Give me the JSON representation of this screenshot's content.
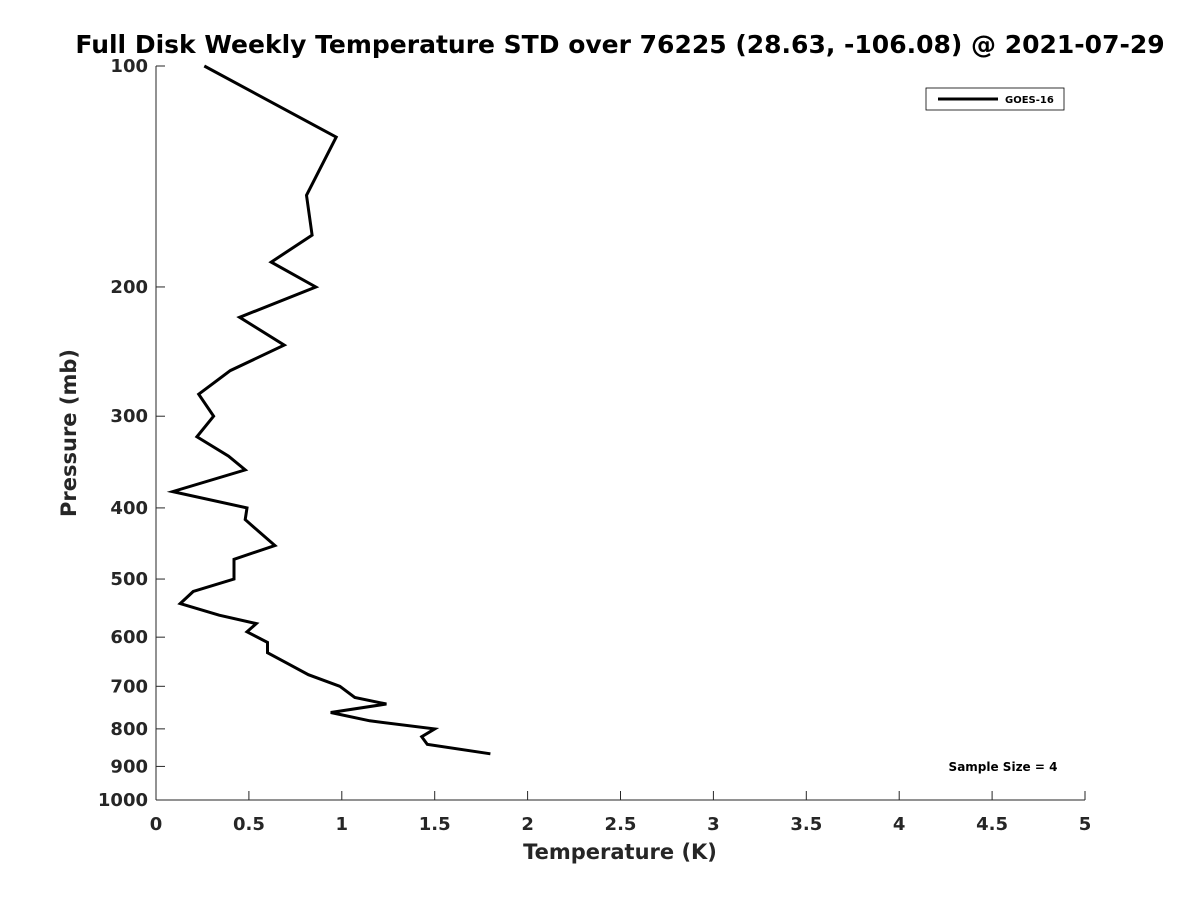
{
  "chart_data": {
    "type": "line",
    "title": "Full Disk Weekly Temperature STD over 76225 (28.63, -106.08) @ 2021-07-29",
    "xlabel": "Temperature (K)",
    "ylabel": "Pressure (mb)",
    "xlim": [
      0,
      5
    ],
    "ylim": [
      100,
      1000
    ],
    "y_scale": "log",
    "y_reversed": true,
    "grid": false,
    "legend_position": "top-right",
    "x_ticks": [
      0,
      0.5,
      1,
      1.5,
      2,
      2.5,
      3,
      3.5,
      4,
      4.5,
      5
    ],
    "x_tick_labels": [
      "0",
      "0.5",
      "1",
      "1.5",
      "2",
      "2.5",
      "3",
      "3.5",
      "4",
      "4.5",
      "5"
    ],
    "y_ticks": [
      100,
      200,
      300,
      400,
      500,
      600,
      700,
      800,
      900,
      1000
    ],
    "y_tick_labels": [
      "100",
      "200",
      "300",
      "400",
      "500",
      "600",
      "700",
      "800",
      "900",
      "1000"
    ],
    "series": [
      {
        "name": "GOES-16",
        "color": "#000000",
        "points": [
          {
            "x": 0.26,
            "p": 100
          },
          {
            "x": 0.97,
            "p": 125
          },
          {
            "x": 0.81,
            "p": 150
          },
          {
            "x": 0.84,
            "p": 170
          },
          {
            "x": 0.62,
            "p": 185
          },
          {
            "x": 0.86,
            "p": 200
          },
          {
            "x": 0.45,
            "p": 220
          },
          {
            "x": 0.69,
            "p": 240
          },
          {
            "x": 0.4,
            "p": 260
          },
          {
            "x": 0.23,
            "p": 280
          },
          {
            "x": 0.31,
            "p": 300
          },
          {
            "x": 0.22,
            "p": 320
          },
          {
            "x": 0.39,
            "p": 340
          },
          {
            "x": 0.48,
            "p": 355
          },
          {
            "x": 0.09,
            "p": 380
          },
          {
            "x": 0.49,
            "p": 400
          },
          {
            "x": 0.48,
            "p": 415
          },
          {
            "x": 0.55,
            "p": 430
          },
          {
            "x": 0.64,
            "p": 450
          },
          {
            "x": 0.42,
            "p": 470
          },
          {
            "x": 0.42,
            "p": 500
          },
          {
            "x": 0.2,
            "p": 520
          },
          {
            "x": 0.13,
            "p": 540
          },
          {
            "x": 0.34,
            "p": 560
          },
          {
            "x": 0.54,
            "p": 575
          },
          {
            "x": 0.49,
            "p": 590
          },
          {
            "x": 0.6,
            "p": 610
          },
          {
            "x": 0.6,
            "p": 630
          },
          {
            "x": 0.7,
            "p": 650
          },
          {
            "x": 0.82,
            "p": 675
          },
          {
            "x": 0.99,
            "p": 700
          },
          {
            "x": 1.07,
            "p": 725
          },
          {
            "x": 1.24,
            "p": 740
          },
          {
            "x": 0.94,
            "p": 760
          },
          {
            "x": 1.15,
            "p": 780
          },
          {
            "x": 1.5,
            "p": 800
          },
          {
            "x": 1.43,
            "p": 820
          },
          {
            "x": 1.46,
            "p": 840
          },
          {
            "x": 1.8,
            "p": 865
          }
        ]
      }
    ],
    "annotation": "Sample Size = 4"
  }
}
